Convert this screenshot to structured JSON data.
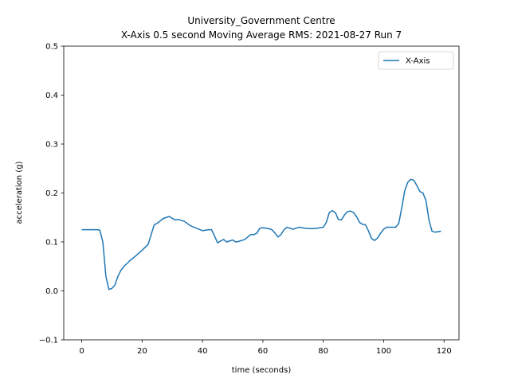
{
  "chart_data": {
    "type": "line",
    "title": [
      "University_Government Centre",
      "X-Axis 0.5 second Moving Average RMS: 2021-08-27 Run 7"
    ],
    "xlabel": "time (seconds)",
    "ylabel": "acceleration (g)",
    "x": [
      0,
      5,
      6,
      7,
      8,
      9,
      10,
      11,
      12,
      13,
      14,
      16,
      18,
      20,
      22,
      23,
      24,
      25,
      26,
      27,
      28,
      29,
      30,
      31,
      32,
      34,
      36,
      38,
      40,
      42,
      43,
      44,
      45,
      46,
      47,
      48,
      49,
      50,
      51,
      52,
      54,
      55,
      56,
      57,
      58,
      59,
      60,
      62,
      63,
      64,
      65,
      66,
      67,
      68,
      69,
      70,
      72,
      74,
      76,
      78,
      80,
      81,
      82,
      83,
      84,
      85,
      86,
      87,
      88,
      89,
      90,
      91,
      92,
      93,
      94,
      95,
      96,
      97,
      98,
      99,
      100,
      101,
      102,
      104,
      105,
      106,
      107,
      108,
      109,
      110,
      111,
      112,
      113,
      114,
      115,
      116,
      117,
      118,
      119
    ],
    "series": [
      {
        "name": "X-Axis",
        "color": "#1f77b4",
        "values": [
          0.125,
          0.125,
          0.124,
          0.1,
          0.03,
          0.003,
          0.005,
          0.012,
          0.03,
          0.042,
          0.05,
          0.062,
          0.072,
          0.083,
          0.095,
          0.115,
          0.135,
          0.138,
          0.143,
          0.148,
          0.15,
          0.152,
          0.148,
          0.145,
          0.146,
          0.142,
          0.133,
          0.128,
          0.123,
          0.125,
          0.125,
          0.112,
          0.098,
          0.102,
          0.105,
          0.1,
          0.102,
          0.104,
          0.1,
          0.101,
          0.105,
          0.11,
          0.115,
          0.115,
          0.118,
          0.128,
          0.129,
          0.127,
          0.125,
          0.118,
          0.11,
          0.115,
          0.125,
          0.13,
          0.128,
          0.126,
          0.13,
          0.128,
          0.127,
          0.128,
          0.13,
          0.14,
          0.16,
          0.164,
          0.16,
          0.146,
          0.145,
          0.155,
          0.162,
          0.163,
          0.16,
          0.152,
          0.14,
          0.136,
          0.135,
          0.122,
          0.107,
          0.103,
          0.108,
          0.118,
          0.126,
          0.13,
          0.13,
          0.13,
          0.138,
          0.17,
          0.205,
          0.222,
          0.228,
          0.226,
          0.215,
          0.203,
          0.2,
          0.185,
          0.145,
          0.122,
          0.12,
          0.121,
          0.122
        ]
      }
    ],
    "xlim": [
      -5.95,
      124.95
    ],
    "xticks": [
      0,
      20,
      40,
      60,
      80,
      100,
      120
    ],
    "ylim": [
      -0.1,
      0.5
    ],
    "yticks": [
      {
        "value": -0.1,
        "label": "−0.1"
      },
      {
        "value": 0,
        "label": "0.0"
      },
      0.1,
      0.2,
      0.3,
      0.4,
      0.5
    ],
    "legend": "upper right"
  }
}
